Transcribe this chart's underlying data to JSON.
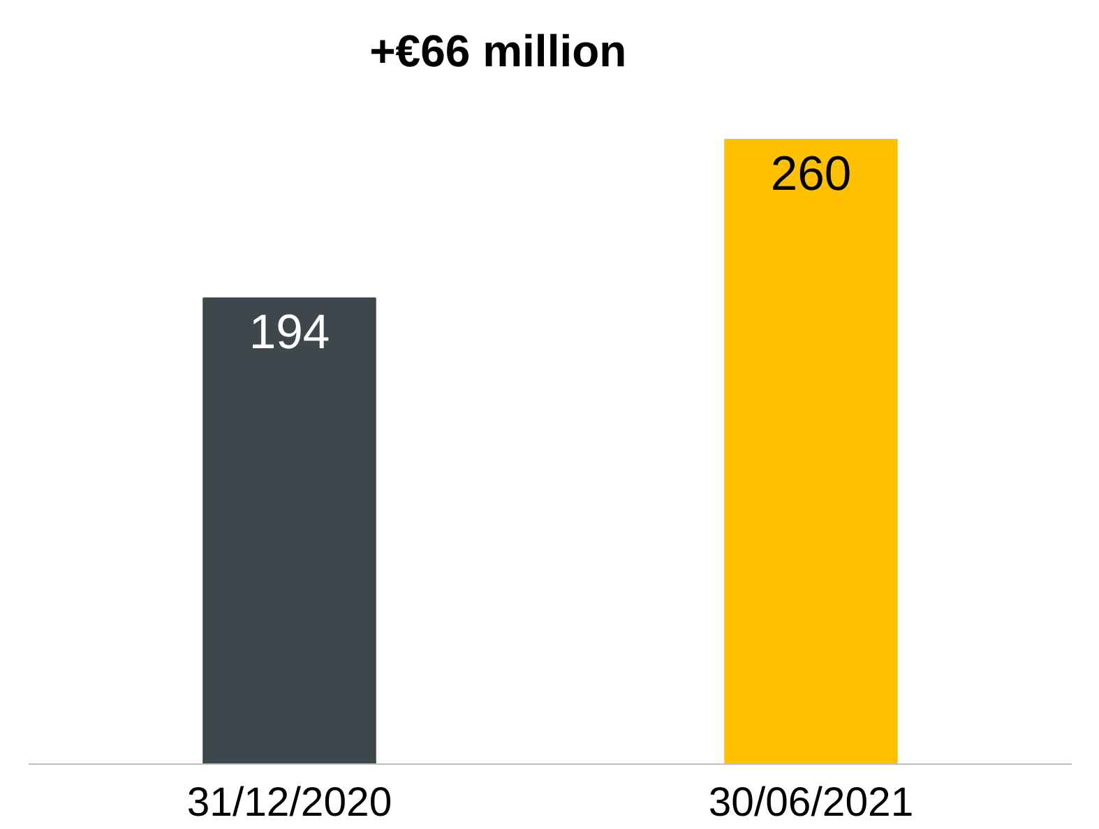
{
  "chart_data": {
    "type": "bar",
    "categories": [
      "31/12/2020",
      "30/06/2021"
    ],
    "values": [
      194,
      260
    ],
    "colors": [
      "#3e474c",
      "#ffc000"
    ],
    "data_labels": true,
    "annotations": [
      "+€66 million"
    ]
  }
}
